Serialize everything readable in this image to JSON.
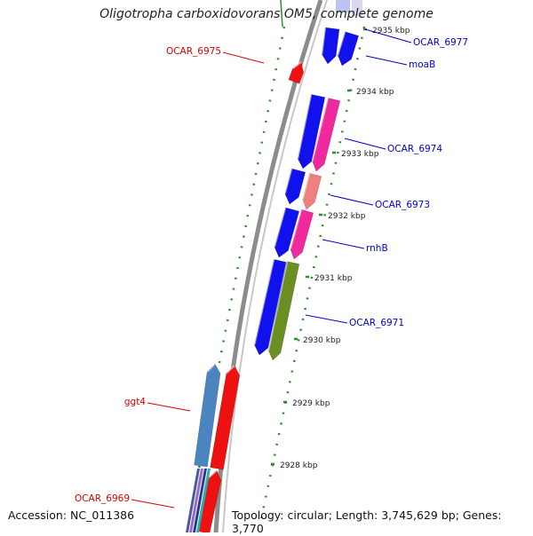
{
  "title": "Oligotropha carboxidovorans OM5, complete genome",
  "footer": {
    "accession": "Accession: NC_011386",
    "topology": "Topology: circular; Length: 3,745,629 bp; Genes: 3,770"
  },
  "colors": {
    "backbone": "#8c8c8c",
    "tick": "#2e8b2e",
    "label_forward": "#0000cc",
    "label_reverse": "#dd0000"
  },
  "ticks": [
    "2928 kbp",
    "2929 kbp",
    "2930 kbp",
    "2931 kbp",
    "2932 kbp",
    "2933 kbp",
    "2934 kbp",
    "2935 kbp"
  ],
  "genes": [
    {
      "label": "OCAR_6977",
      "strand": "forward",
      "color": "#0000ee"
    },
    {
      "label": "moaB",
      "strand": "forward",
      "color": "#0000ee"
    },
    {
      "label": "OCAR_6974",
      "strand": "forward",
      "color": "#0000ee"
    },
    {
      "label": "OCAR_6973",
      "strand": "forward",
      "color": "#0000ee"
    },
    {
      "label": "rnhB",
      "strand": "forward",
      "color": "#0000ee"
    },
    {
      "label": "OCAR_6971",
      "strand": "forward",
      "color": "#0000ee"
    },
    {
      "label": "OCAR_6975",
      "strand": "reverse",
      "color": "#ee0000"
    },
    {
      "label": "ggt4",
      "strand": "reverse",
      "color": "#ee0000"
    },
    {
      "label": "OCAR_6969",
      "strand": "reverse",
      "color": "#ee0000"
    }
  ]
}
